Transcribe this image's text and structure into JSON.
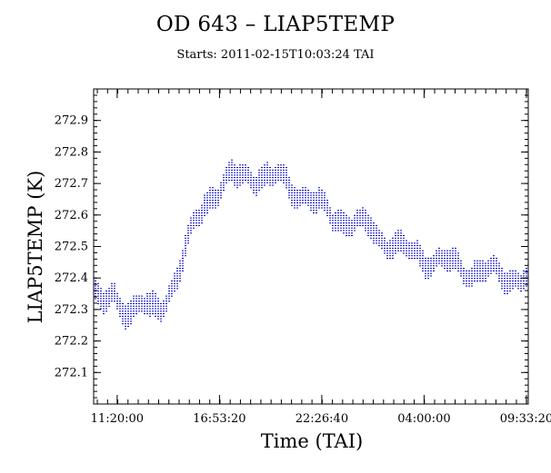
{
  "chart_data": {
    "type": "scatter",
    "title": "OD 643 – LIAP5TEMP",
    "subtitle": "Starts: 2011-02-15T10:03:24 TAI",
    "xlabel": "Time (TAI)",
    "ylabel": "LIAP5TEMP (K)",
    "x_tick_labels": [
      "11:20:00",
      "16:53:20",
      "22:26:40",
      "04:00:00",
      "09:33:20"
    ],
    "x_tick_values_hours": [
      1.2767,
      6.8322,
      12.3878,
      17.9433,
      23.4989
    ],
    "x_range_hours_from_start": [
      0,
      23.6
    ],
    "y_ticks": [
      272.1,
      272.2,
      272.3,
      272.4,
      272.5,
      272.6,
      272.7,
      272.8,
      272.9
    ],
    "ylim": [
      272.0,
      273.0
    ],
    "grid": false,
    "series": [
      {
        "color": "#0000cc",
        "x_hours_from_start": [
          0.0,
          0.5,
          1.0,
          1.5,
          2.0,
          2.5,
          3.0,
          3.5,
          4.0,
          4.5,
          5.0,
          5.5,
          6.0,
          6.5,
          7.0,
          7.5,
          8.0,
          8.5,
          9.0,
          9.5,
          10.0,
          10.5,
          11.0,
          11.5,
          12.0,
          12.5,
          13.0,
          13.5,
          14.0,
          14.5,
          15.0,
          15.5,
          16.0,
          16.5,
          17.0,
          17.5,
          18.0,
          18.5,
          19.0,
          19.5,
          20.0,
          20.5,
          21.0,
          21.5,
          22.0,
          22.5,
          23.0,
          23.5
        ],
        "center_K": [
          272.35,
          272.32,
          272.34,
          272.32,
          272.3,
          272.33,
          272.29,
          272.31,
          272.35,
          272.42,
          272.5,
          272.58,
          272.64,
          272.68,
          272.7,
          272.72,
          272.73,
          272.72,
          272.74,
          272.71,
          272.73,
          272.7,
          272.68,
          272.66,
          272.64,
          272.62,
          272.6,
          272.59,
          272.58,
          272.56,
          272.57,
          272.53,
          272.52,
          272.5,
          272.49,
          272.48,
          272.47,
          272.45,
          272.46,
          272.44,
          272.44,
          272.42,
          272.43,
          272.41,
          272.42,
          272.4,
          272.41,
          272.4
        ],
        "spread_K": [
          0.06,
          0.06,
          0.07,
          0.06,
          0.07,
          0.06,
          0.07,
          0.06,
          0.06,
          0.06,
          0.06,
          0.06,
          0.06,
          0.06,
          0.06,
          0.06,
          0.06,
          0.06,
          0.06,
          0.06,
          0.06,
          0.06,
          0.06,
          0.06,
          0.06,
          0.06,
          0.06,
          0.06,
          0.06,
          0.06,
          0.06,
          0.06,
          0.06,
          0.06,
          0.06,
          0.06,
          0.06,
          0.06,
          0.06,
          0.06,
          0.06,
          0.06,
          0.06,
          0.06,
          0.06,
          0.06,
          0.06,
          0.06
        ]
      }
    ]
  }
}
